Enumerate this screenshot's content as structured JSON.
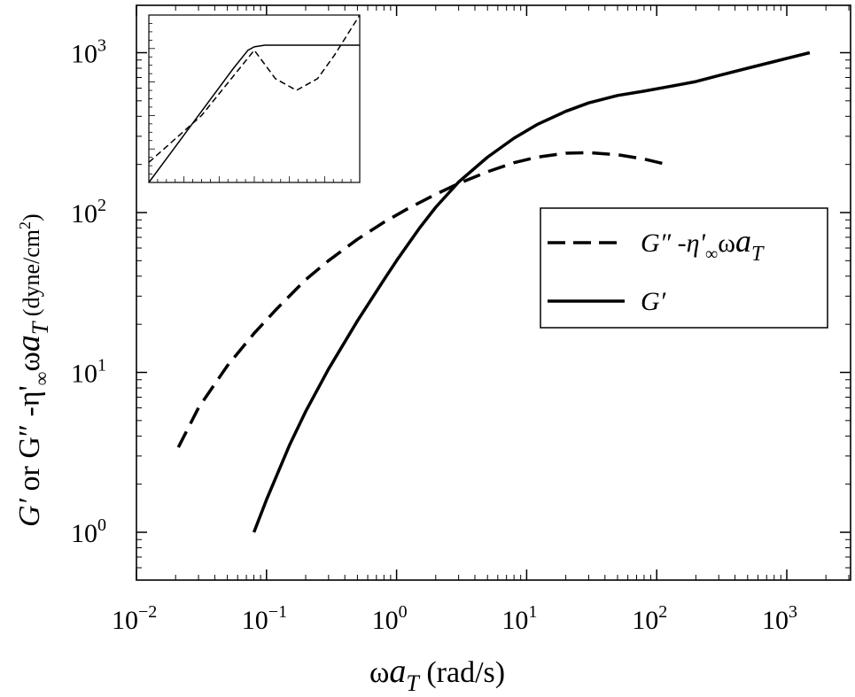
{
  "chart_data": {
    "type": "line",
    "title": "",
    "xlabel": {
      "main": "ω",
      "var": "a",
      "sub": "T",
      "unit": " (rad/s)"
    },
    "ylabel": {
      "p1": "G′",
      "p2": " or G″ -η'",
      "sub_inf": "∞",
      "p3": "ω",
      "var": "a",
      "sub": "T",
      "unit": " (dyne/cm",
      "sup": "2",
      "close": ")"
    },
    "x_scale": "log",
    "y_scale": "log",
    "xlim": [
      0.01,
      4500
    ],
    "ylim": [
      0.3,
      2000
    ],
    "x_ticks": [
      {
        "base": "10",
        "exp": "−2"
      },
      {
        "base": "10",
        "exp": "−1"
      },
      {
        "base": "10",
        "exp": "0"
      },
      {
        "base": "10",
        "exp": "1"
      },
      {
        "base": "10",
        "exp": "2"
      },
      {
        "base": "10",
        "exp": "3"
      }
    ],
    "y_ticks": [
      {
        "base": "10",
        "exp": "0"
      },
      {
        "base": "10",
        "exp": "1"
      },
      {
        "base": "10",
        "exp": "2"
      },
      {
        "base": "10",
        "exp": "3"
      }
    ],
    "legend": {
      "position": "center-right",
      "entries": [
        {
          "text_main": "G″ -η'",
          "text_sub": "∞",
          "text_mid": "ω",
          "text_var": "a",
          "text_sub2": "T",
          "style": "dashed"
        },
        {
          "text_main": "G′",
          "style": "solid"
        }
      ]
    },
    "series": [
      {
        "style": "dashed",
        "x": [
          0.021,
          0.03,
          0.05,
          0.08,
          0.12,
          0.2,
          0.3,
          0.5,
          0.8,
          1.2,
          2,
          3,
          5,
          8,
          12,
          20,
          30,
          50,
          80,
          120
        ],
        "y": [
          3.4,
          6.0,
          11.0,
          17.5,
          25,
          38,
          50,
          68,
          87,
          105,
          130,
          152,
          180,
          205,
          222,
          235,
          237,
          230,
          216,
          200
        ]
      },
      {
        "style": "solid",
        "x": [
          0.08,
          0.1,
          0.15,
          0.2,
          0.3,
          0.5,
          0.8,
          1.0,
          1.5,
          2,
          3,
          5,
          8,
          12,
          20,
          30,
          50,
          80,
          120,
          200,
          300,
          500,
          800,
          1500
        ],
        "y": [
          1.0,
          1.6,
          3.5,
          5.7,
          10.5,
          21,
          38,
          50,
          80,
          108,
          155,
          222,
          292,
          355,
          430,
          485,
          540,
          575,
          610,
          660,
          720,
          800,
          880,
          1000
        ]
      }
    ],
    "inset": {
      "note": "inset shows same two curves, no tick labels",
      "series": [
        {
          "style": "dashed",
          "x": [
            0,
            0.25,
            0.5,
            0.6,
            0.7,
            0.8,
            0.88,
            0.95,
            1.0
          ],
          "y": [
            0.12,
            0.4,
            0.79,
            0.62,
            0.55,
            0.62,
            0.76,
            0.9,
            1.0
          ]
        },
        {
          "style": "solid",
          "x": [
            0,
            0.1,
            0.2,
            0.3,
            0.4,
            0.47,
            0.5,
            0.55,
            1.0
          ],
          "y": [
            0.0,
            0.17,
            0.34,
            0.51,
            0.68,
            0.79,
            0.81,
            0.82,
            0.82
          ]
        }
      ]
    }
  }
}
